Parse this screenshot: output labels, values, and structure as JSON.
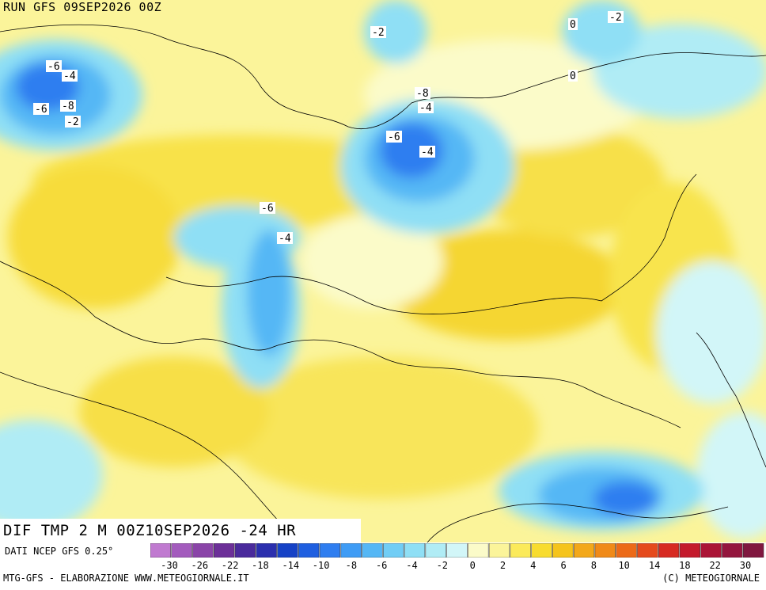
{
  "header": {
    "run": "RUN GFS 09SEP2026 00Z"
  },
  "title": "DIF TMP 2 M 00Z10SEP2026 -24 HR",
  "footer": {
    "data_source": "DATI NCEP GFS 0.25°",
    "credits": "MTG-GFS - ELABORAZIONE WWW.METEOGIORNALE.IT",
    "copyright": "(C) METEOGIORNALE"
  },
  "legend": {
    "colors": [
      "#c07ad0",
      "#a35bbd",
      "#8a44a8",
      "#6c2f98",
      "#4a2a9c",
      "#2b2fae",
      "#1642c6",
      "#1f5fe0",
      "#2f7ef0",
      "#3f9cf5",
      "#55b7f5",
      "#71cdf5",
      "#8fdff5",
      "#b0ecf5",
      "#d2f6f8",
      "#fbfbc9",
      "#fbf49a",
      "#fbea5a",
      "#f8dc2e",
      "#f5c41c",
      "#f3a81a",
      "#f08a18",
      "#ec6a18",
      "#e54a1c",
      "#d72a22",
      "#c41a2c",
      "#ab1436",
      "#94163e",
      "#80173f"
    ],
    "tick_labels": [
      "-30",
      "-26",
      "-22",
      "-18",
      "-14",
      "-10",
      "-8",
      "-6",
      "-4",
      "-2",
      "0",
      "2",
      "4",
      "6",
      "8",
      "10",
      "14",
      "18",
      "22",
      "30"
    ]
  },
  "contour_labels": [
    {
      "text": "-2",
      "region": "arctic"
    },
    {
      "text": "0",
      "region": "arctic"
    },
    {
      "text": "-2",
      "region": "chukotka"
    },
    {
      "text": "0",
      "region": "chukotka"
    },
    {
      "text": "-6",
      "region": "scandinavia"
    },
    {
      "text": "-4",
      "region": "scandinavia"
    },
    {
      "text": "-8",
      "region": "scandinavia"
    },
    {
      "text": "-6",
      "region": "scandinavia"
    },
    {
      "text": "-2",
      "region": "ural"
    },
    {
      "text": "-8",
      "region": "siberia"
    },
    {
      "text": "-4",
      "region": "siberia"
    },
    {
      "text": "-6",
      "region": "kazakhstan"
    },
    {
      "text": "-4",
      "region": "kazakhstan"
    },
    {
      "text": "-6",
      "region": "china"
    },
    {
      "text": "-4",
      "region": "china"
    }
  ]
}
